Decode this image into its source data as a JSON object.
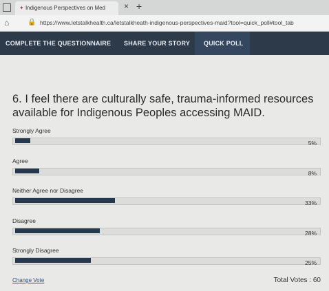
{
  "browser": {
    "tab_title": "Indigenous Perspectives on Med",
    "url": "https://www.letstalkhealth.ca/letstalkheath-indigenous-perspectives-maid?tool=quick_poll#tool_tab"
  },
  "nav": [
    "COMPLETE THE QUESTIONNAIRE",
    "SHARE YOUR STORY",
    "QUICK POLL"
  ],
  "poll": {
    "question": "6. I feel there are culturally safe, trauma-informed resources available for Indigenous Peoples accessing MAID.",
    "options": [
      {
        "label": "Strongly Agree",
        "value": 5,
        "value_label": "5%"
      },
      {
        "label": "Agree",
        "value": 8,
        "value_label": "8%"
      },
      {
        "label": "Neither Agree nor Disagree",
        "value": 33,
        "value_label": "33%"
      },
      {
        "label": "Disagree",
        "value": 28,
        "value_label": "28%"
      },
      {
        "label": "Strongly Disagree",
        "value": 25,
        "value_label": "25%"
      }
    ],
    "change_vote": "Change Vote",
    "total_votes": "Total Votes : 60"
  }
}
